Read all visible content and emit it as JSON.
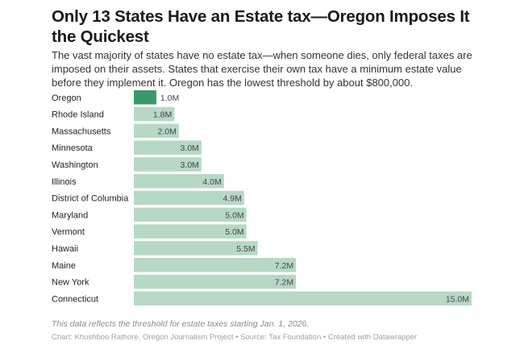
{
  "header": {
    "title": "Only 13 States Have an Estate tax—Oregon Imposes It the Quickest",
    "description": "The vast majority of states have no estate tax—when someone dies, only federal taxes are imposed on their assets. States that exercise their own tax have a minimum estate value before they implement it. Oregon has the lowest threshold by about $800,000."
  },
  "footer": {
    "note": "This data reflects the threshold for estate taxes starting Jan. 1, 2026.",
    "credit": "Chart: Khushboo Rathore, Oregon Journalism Project • Source: Tax Foundation • Created with Datawrapper"
  },
  "chart_data": {
    "type": "bar",
    "orientation": "horizontal",
    "title": "Only 13 States Have an Estate tax—Oregon Imposes It the Quickest",
    "xlabel": "",
    "ylabel": "",
    "unit_suffix": "M",
    "categories": [
      "Oregon",
      "Rhode Island",
      "Massachusetts",
      "Minnesota",
      "Washington",
      "Illinois",
      "District of Columbia",
      "Maryland",
      "Vermont",
      "Hawaii",
      "Maine",
      "New York",
      "Connecticut"
    ],
    "values": [
      1.0,
      1.8,
      2.0,
      3.0,
      3.0,
      4.0,
      4.9,
      5.0,
      5.0,
      5.5,
      7.2,
      7.2,
      15.0
    ],
    "labels": [
      "1.0M",
      "1.8M",
      "2.0M",
      "3.0M",
      "3.0M",
      "4.0M",
      "4.9M",
      "5.0M",
      "5.0M",
      "5.5M",
      "7.2M",
      "7.2M",
      "15.0M"
    ],
    "highlight": "Oregon",
    "xlim": [
      0,
      15
    ],
    "grid": false,
    "legend": "none",
    "colors": {
      "highlight": "#3a9a6c",
      "default": "#b6d8c5",
      "label": "#444444"
    }
  }
}
